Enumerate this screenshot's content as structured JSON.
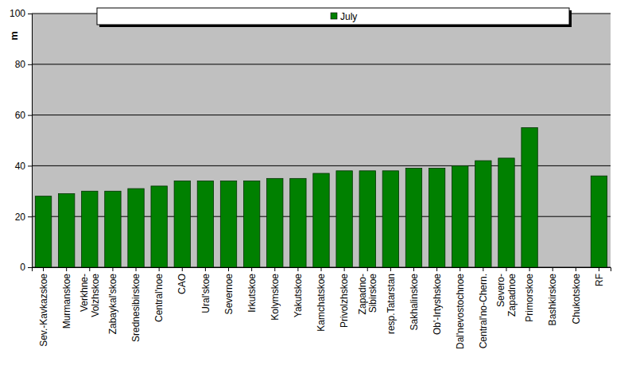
{
  "chart_data": {
    "type": "bar",
    "y_label": "m",
    "categories": [
      "Sev.-Kavkazskoe",
      "Murmanskoe",
      "Verkhne-\nVolzhskoe",
      "Zabaykal'skoe",
      "Srednesibirskoe",
      "Central'noe",
      "CAO",
      "Ural'skoe",
      "Severnoe",
      "Irkutskoe",
      "Kolymskoe",
      "Yakutskoe",
      "Kamchatskoe",
      "Privolzhskoe",
      "Zapadno-\nSibirskoe",
      "resp.Tatarstan",
      "Sakhalinskoe",
      "Ob'-Irtyshskoe",
      "Dal'nevostochnoe",
      "Central'no-Chern.",
      "Severo-\nZapadnoe",
      "Primorskoe",
      "Bashkirskoe",
      "Chukotskoe",
      "RF"
    ],
    "series": [
      {
        "name": "July",
        "color": "#008000",
        "values": [
          28,
          29,
          30,
          30,
          31,
          32,
          34,
          34,
          34,
          34,
          35,
          35,
          37,
          38,
          38,
          38,
          39,
          39,
          40,
          42,
          43,
          55,
          null,
          null,
          36
        ]
      }
    ],
    "ylim": [
      0,
      100
    ],
    "yticks": [
      0,
      20,
      40,
      60,
      80,
      100
    ],
    "grid": true,
    "legend": "top"
  }
}
